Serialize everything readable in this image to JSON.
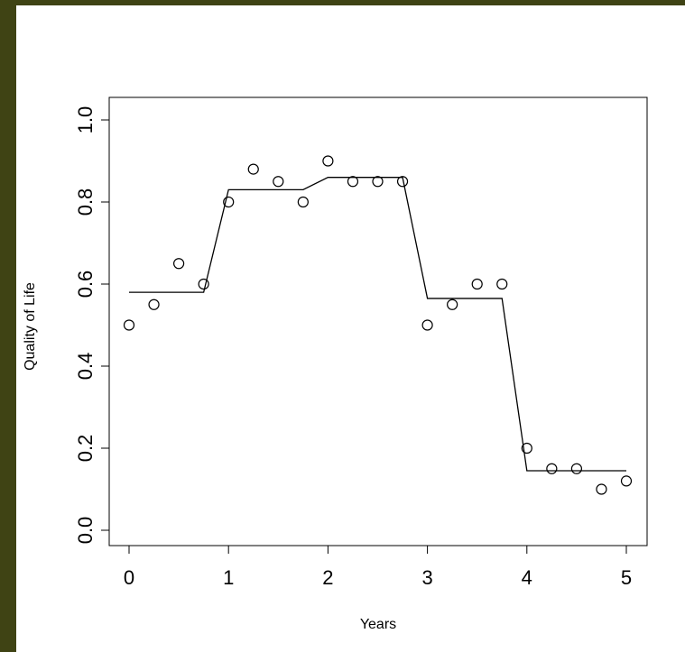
{
  "chart_data": {
    "type": "scatter",
    "xlabel": "Years",
    "ylabel": "Quality of Life",
    "xlim": [
      0,
      5
    ],
    "ylim": [
      0,
      1
    ],
    "xticks": [
      0,
      1,
      2,
      3,
      4,
      5
    ],
    "yticks": [
      0.0,
      0.2,
      0.4,
      0.6,
      0.8,
      1.0
    ],
    "xtick_labels": [
      "0",
      "1",
      "2",
      "3",
      "4",
      "5"
    ],
    "ytick_labels": [
      "0.0",
      "0.2",
      "0.4",
      "0.6",
      "0.8",
      "1.0"
    ],
    "grid": false,
    "series": [
      {
        "kind": "points",
        "marker": "open-circle",
        "x": [
          0,
          0.25,
          0.5,
          0.75,
          1,
          1.25,
          1.5,
          1.75,
          2,
          2.25,
          2.5,
          2.75,
          3,
          3.25,
          3.5,
          3.75,
          4,
          4.25,
          4.5,
          4.75,
          5
        ],
        "y": [
          0.5,
          0.55,
          0.65,
          0.6,
          0.8,
          0.88,
          0.85,
          0.8,
          0.9,
          0.85,
          0.85,
          0.85,
          0.5,
          0.55,
          0.6,
          0.6,
          0.2,
          0.15,
          0.15,
          0.1,
          0.12
        ]
      },
      {
        "kind": "line",
        "x": [
          0,
          0.75,
          1,
          1.75,
          2,
          2.75,
          3,
          3.75,
          4,
          5
        ],
        "y": [
          0.58,
          0.58,
          0.83,
          0.83,
          0.86,
          0.86,
          0.565,
          0.565,
          0.145,
          0.145
        ]
      }
    ],
    "colors": {
      "panel": "#ffffff",
      "frame": "#3f4314",
      "ink": "#000000"
    }
  }
}
